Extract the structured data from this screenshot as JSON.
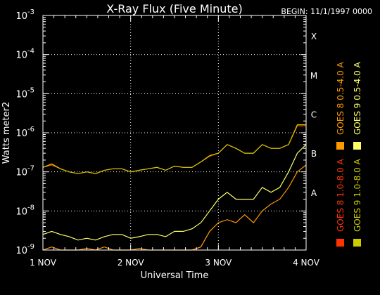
{
  "chart_data": {
    "type": "line",
    "title": "X-Ray Flux (Five Minute)",
    "begin_label": "BEGIN: 11/1/1997 0000",
    "xlabel": "Universal Time",
    "ylabel": "Watts meter2",
    "x_ticks": [
      "1 NOV",
      "2 NOV",
      "3 NOV",
      "4 NOV"
    ],
    "x_range_days": [
      0,
      3
    ],
    "y_scale": "log",
    "ylim": [
      1e-09,
      0.001
    ],
    "y_ticks": [
      {
        "base": "10",
        "exp": "-9"
      },
      {
        "base": "10",
        "exp": "-8"
      },
      {
        "base": "10",
        "exp": "-7"
      },
      {
        "base": "10",
        "exp": "-6"
      },
      {
        "base": "10",
        "exp": "-5"
      },
      {
        "base": "10",
        "exp": "-4"
      },
      {
        "base": "10",
        "exp": "-3"
      }
    ],
    "class_labels": [
      {
        "label": "A",
        "flux": 1e-08
      },
      {
        "label": "B",
        "flux": 1e-07
      },
      {
        "label": "C",
        "flux": 1e-06
      },
      {
        "label": "M",
        "flux": 1e-05
      },
      {
        "label": "X",
        "flux": 0.0001
      }
    ],
    "grid": true,
    "legend_position": "right",
    "series": [
      {
        "name": "GOES 8 1.0-8.0 A",
        "color": "#ff3300",
        "x": [
          0,
          0.1,
          0.2,
          0.3,
          0.4,
          0.5,
          0.6,
          0.7,
          0.8,
          0.9,
          1.0,
          1.1,
          1.2,
          1.3,
          1.4,
          1.5,
          1.6,
          1.7,
          1.8,
          1.9,
          2.0,
          2.1,
          2.2,
          2.3,
          2.4,
          2.5,
          2.6,
          2.7,
          2.8,
          2.9,
          3.0
        ],
        "y": [
          1.3e-07,
          1.5e-07,
          1.2e-07,
          1e-07,
          9e-08,
          1e-07,
          9e-08,
          1.1e-07,
          1.2e-07,
          1.2e-07,
          1e-07,
          1.1e-07,
          1.2e-07,
          1.3e-07,
          1.1e-07,
          1.4e-07,
          1.3e-07,
          1.3e-07,
          1.8e-07,
          2.5e-07,
          3e-07,
          5e-07,
          4e-07,
          3e-07,
          3e-07,
          5e-07,
          4e-07,
          4e-07,
          5e-07,
          1.5e-06,
          1.5e-06
        ]
      },
      {
        "name": "GOES 8 0.5-4.0 A",
        "color": "#ff9900",
        "x": [
          0,
          0.1,
          0.2,
          0.3,
          0.4,
          0.5,
          0.6,
          0.7,
          0.8,
          0.9,
          1.0,
          1.1,
          1.2,
          1.3,
          1.4,
          1.5,
          1.6,
          1.7,
          1.8,
          1.9,
          2.0,
          2.1,
          2.2,
          2.3,
          2.4,
          2.5,
          2.6,
          2.7,
          2.8,
          2.9,
          3.0
        ],
        "y": [
          1e-09,
          1.2e-09,
          1e-09,
          1e-09,
          1e-09,
          1.1e-09,
          1e-09,
          1.2e-09,
          1e-09,
          1e-09,
          1e-09,
          1.1e-09,
          1e-09,
          1e-09,
          1e-09,
          1e-09,
          1e-09,
          1e-09,
          1.2e-09,
          3e-09,
          5e-09,
          6e-09,
          5e-09,
          8e-09,
          5e-09,
          1e-08,
          1.5e-08,
          2e-08,
          4e-08,
          1e-07,
          1.5e-07
        ]
      },
      {
        "name": "GOES 9 1.0-8.0 A",
        "color": "#cccc00",
        "x": [
          0,
          0.1,
          0.2,
          0.3,
          0.4,
          0.5,
          0.6,
          0.7,
          0.8,
          0.9,
          1.0,
          1.1,
          1.2,
          1.3,
          1.4,
          1.5,
          1.6,
          1.7,
          1.8,
          1.9,
          2.0,
          2.1,
          2.2,
          2.3,
          2.4,
          2.5,
          2.6,
          2.7,
          2.8,
          2.9,
          3.0
        ],
        "y": [
          1.3e-07,
          1.6e-07,
          1.2e-07,
          1e-07,
          9e-08,
          1e-07,
          9e-08,
          1.1e-07,
          1.2e-07,
          1.2e-07,
          1e-07,
          1.1e-07,
          1.2e-07,
          1.3e-07,
          1.1e-07,
          1.4e-07,
          1.3e-07,
          1.3e-07,
          1.8e-07,
          2.6e-07,
          3e-07,
          5e-07,
          4e-07,
          3e-07,
          3e-07,
          5e-07,
          4e-07,
          4e-07,
          5e-07,
          1.6e-06,
          1.6e-06
        ]
      },
      {
        "name": "GOES 9 0.5-4.0 A",
        "color": "#ffff66",
        "x": [
          0,
          0.1,
          0.2,
          0.3,
          0.4,
          0.5,
          0.6,
          0.7,
          0.8,
          0.9,
          1.0,
          1.1,
          1.2,
          1.3,
          1.4,
          1.5,
          1.6,
          1.7,
          1.8,
          1.9,
          2.0,
          2.1,
          2.2,
          2.3,
          2.4,
          2.5,
          2.6,
          2.7,
          2.8,
          2.9,
          3.0
        ],
        "y": [
          2.5e-09,
          3e-09,
          2.5e-09,
          2.2e-09,
          1.8e-09,
          2e-09,
          1.8e-09,
          2.2e-09,
          2.5e-09,
          2.5e-09,
          2e-09,
          2.2e-09,
          2.5e-09,
          2.5e-09,
          2.2e-09,
          3e-09,
          3e-09,
          3.5e-09,
          5e-09,
          1e-08,
          2e-08,
          3e-08,
          2e-08,
          2e-08,
          2e-08,
          4e-08,
          3e-08,
          4e-08,
          1e-07,
          3e-07,
          5e-07
        ]
      }
    ]
  }
}
